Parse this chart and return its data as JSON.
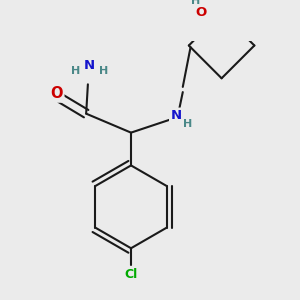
{
  "bg_color": "#ebebeb",
  "bond_color": "#1a1a1a",
  "bond_width": 1.5,
  "atom_colors": {
    "H": "#4a8888",
    "N": "#1414cc",
    "O": "#cc0000",
    "Cl": "#00aa00"
  },
  "font_size_main": 9.5,
  "font_size_small": 8.0,
  "font_size_cl": 9.0
}
